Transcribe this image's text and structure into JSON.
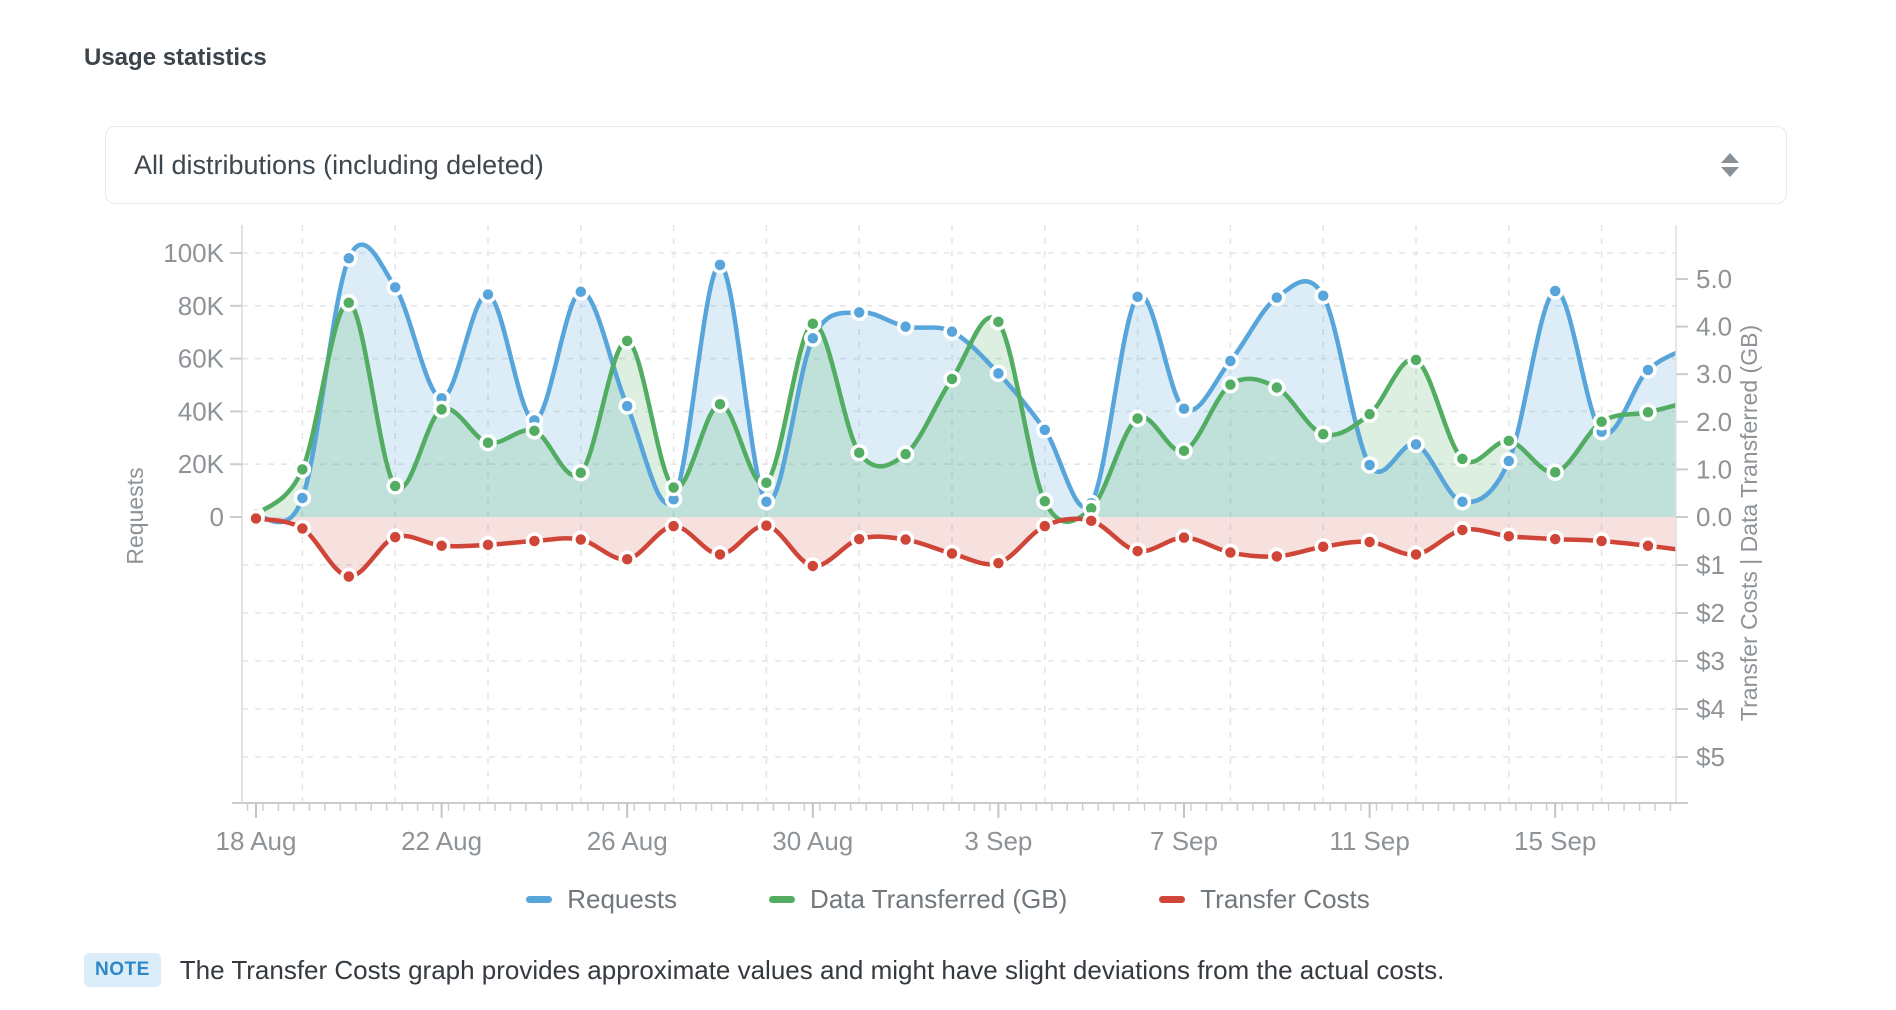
{
  "page": {
    "title": "Usage statistics"
  },
  "distribution_select": {
    "value": "All distributions (including deleted)"
  },
  "note": {
    "badge": "NOTE",
    "text": "The Transfer Costs graph provides approximate values and might have slight deviations from the actual costs."
  },
  "chart_data": {
    "type": "line",
    "n_points": 32,
    "x_start_date": "18 Aug",
    "x_tick_labels": [
      "18 Aug",
      "22 Aug",
      "26 Aug",
      "30 Aug",
      "3 Sep",
      "7 Sep",
      "11 Sep",
      "15 Sep"
    ],
    "x_tick_every": 4,
    "left_axis": {
      "title": "Requests",
      "tick_labels": [
        "0",
        "20K",
        "40K",
        "60K",
        "80K",
        "100K"
      ],
      "tick_values": [
        0,
        20000,
        40000,
        60000,
        80000,
        100000
      ]
    },
    "right_axis": {
      "title": "Transfer Costs | Data Transferred (GB)",
      "gb_tick_labels": [
        "0.0",
        "1.0",
        "2.0",
        "3.0",
        "4.0",
        "5.0"
      ],
      "cost_tick_labels": [
        "$1",
        "$2",
        "$3",
        "$4",
        "$5"
      ]
    },
    "grid": true,
    "legend_position": "bottom",
    "series": [
      {
        "name": "Requests",
        "axis": "requests",
        "color": "#57a5da",
        "fill": "rgba(87,165,218,0.20)",
        "values": [
          400,
          7200,
          98000,
          87000,
          45000,
          84300,
          36600,
          85300,
          42000,
          6700,
          95500,
          5800,
          67700,
          77500,
          72100,
          70200,
          54400,
          33000,
          5200,
          83400,
          41000,
          59100,
          83100,
          83800,
          19700,
          27500,
          5800,
          21200,
          85600,
          32300,
          55700,
          65000
        ]
      },
      {
        "name": "Data Transferred (GB)",
        "axis": "gb",
        "color": "#52ad62",
        "fill": "rgba(82,173,98,0.20)",
        "values": [
          0.05,
          1.0,
          4.5,
          0.65,
          2.26,
          1.56,
          1.81,
          0.93,
          3.7,
          0.62,
          2.37,
          0.72,
          4.06,
          1.35,
          1.32,
          2.9,
          4.1,
          0.33,
          0.18,
          2.07,
          1.39,
          2.78,
          2.72,
          1.74,
          2.16,
          3.3,
          1.22,
          1.6,
          0.94,
          2.0,
          2.2,
          2.45
        ]
      },
      {
        "name": "Transfer Costs",
        "axis": "cost",
        "color": "#cf4537",
        "fill": "rgba(207,69,55,0.16)",
        "values": [
          0.03,
          0.24,
          1.24,
          0.42,
          0.6,
          0.58,
          0.5,
          0.47,
          0.88,
          0.19,
          0.78,
          0.18,
          1.02,
          0.46,
          0.47,
          0.76,
          0.96,
          0.19,
          0.08,
          0.71,
          0.43,
          0.74,
          0.82,
          0.62,
          0.52,
          0.78,
          0.27,
          0.4,
          0.46,
          0.5,
          0.6,
          0.72
        ]
      }
    ]
  }
}
